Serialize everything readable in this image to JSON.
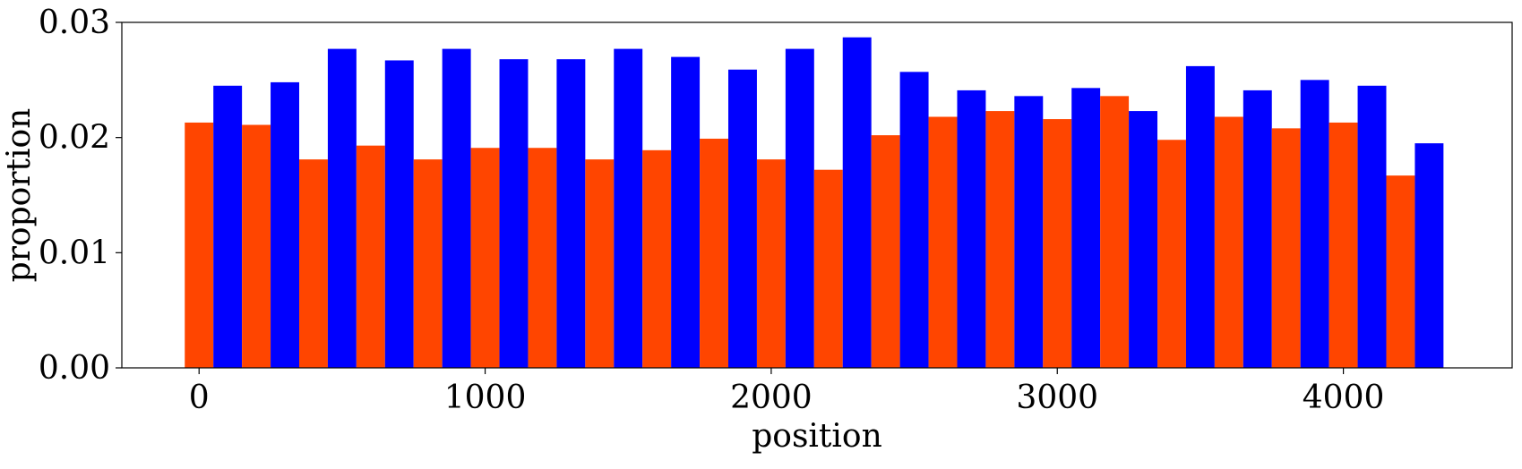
{
  "chart_data": {
    "type": "bar",
    "title": "",
    "xlabel": "position",
    "ylabel": "proportion",
    "xlim": [
      -270,
      4590
    ],
    "ylim": [
      0,
      0.03
    ],
    "xticks": [
      0,
      1000,
      2000,
      3000,
      4000
    ],
    "xtick_labels": [
      "0",
      "1000",
      "2000",
      "3000",
      "4000"
    ],
    "yticks": [
      0,
      0.01,
      0.02,
      0.03
    ],
    "ytick_labels": [
      "0.00",
      "0.01",
      "0.02",
      "0.03"
    ],
    "bin_width": 200,
    "bin_starts": [
      -50,
      150,
      350,
      550,
      750,
      950,
      1150,
      1350,
      1550,
      1750,
      1950,
      2150,
      2350,
      2550,
      2750,
      2950,
      3150,
      3350,
      3550,
      3750,
      3950,
      4150
    ],
    "grid": false,
    "legend": false,
    "series": [
      {
        "color": "#ff4500",
        "values": [
          0.0213,
          0.0211,
          0.0181,
          0.0193,
          0.0181,
          0.0191,
          0.0191,
          0.0181,
          0.0189,
          0.0199,
          0.0181,
          0.0172,
          0.0202,
          0.0218,
          0.0223,
          0.0216,
          0.0236,
          0.0198,
          0.0218,
          0.0208,
          0.0213,
          0.0167
        ]
      },
      {
        "color": "#0000ff",
        "values": [
          0.0245,
          0.0248,
          0.0277,
          0.0267,
          0.0277,
          0.0268,
          0.0268,
          0.0277,
          0.027,
          0.0259,
          0.0277,
          0.0287,
          0.0257,
          0.0241,
          0.0236,
          0.0243,
          0.0223,
          0.0262,
          0.0241,
          0.025,
          0.0245,
          0.0195
        ]
      }
    ]
  }
}
